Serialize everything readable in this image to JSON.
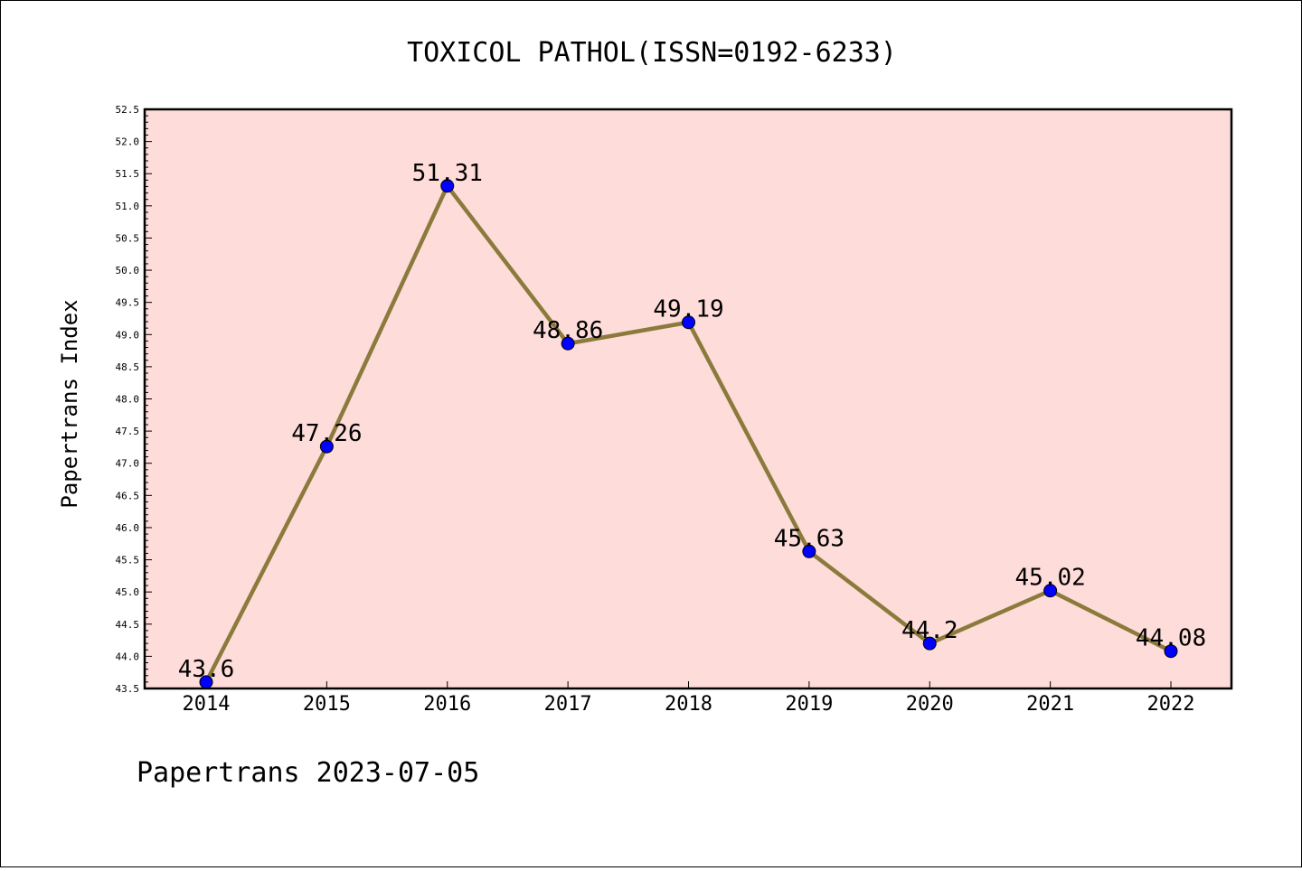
{
  "chart_data": {
    "type": "line",
    "title": "TOXICOL PATHOL(ISSN=0192-6233)",
    "xlabel": "",
    "ylabel": "Papertrans Index",
    "categories": [
      "2014",
      "2015",
      "2016",
      "2017",
      "2018",
      "2019",
      "2020",
      "2021",
      "2022"
    ],
    "series": [
      {
        "values": [
          43.6,
          47.26,
          51.31,
          48.86,
          49.19,
          45.63,
          44.2,
          45.02,
          44.08
        ],
        "data_labels": [
          "43.6",
          "47.26",
          "51.31",
          "48.86",
          "49.19",
          "45.63",
          "44.2",
          "45.02",
          "44.08"
        ]
      }
    ],
    "ylim": [
      43.5,
      52.5
    ],
    "yticks": [
      "43.5",
      "44.0",
      "44.5",
      "45.0",
      "45.5",
      "46.0",
      "46.5",
      "47.0",
      "47.5",
      "48.0",
      "48.5",
      "49.0",
      "49.5",
      "50.0",
      "50.5",
      "51.0",
      "51.5",
      "52.0",
      "52.5"
    ],
    "grid": false,
    "colors": {
      "plot_background": "#fddcd9",
      "line": "#8b7a3c",
      "marker": "#0000ff"
    }
  },
  "footer": "Papertrans 2023-07-05"
}
